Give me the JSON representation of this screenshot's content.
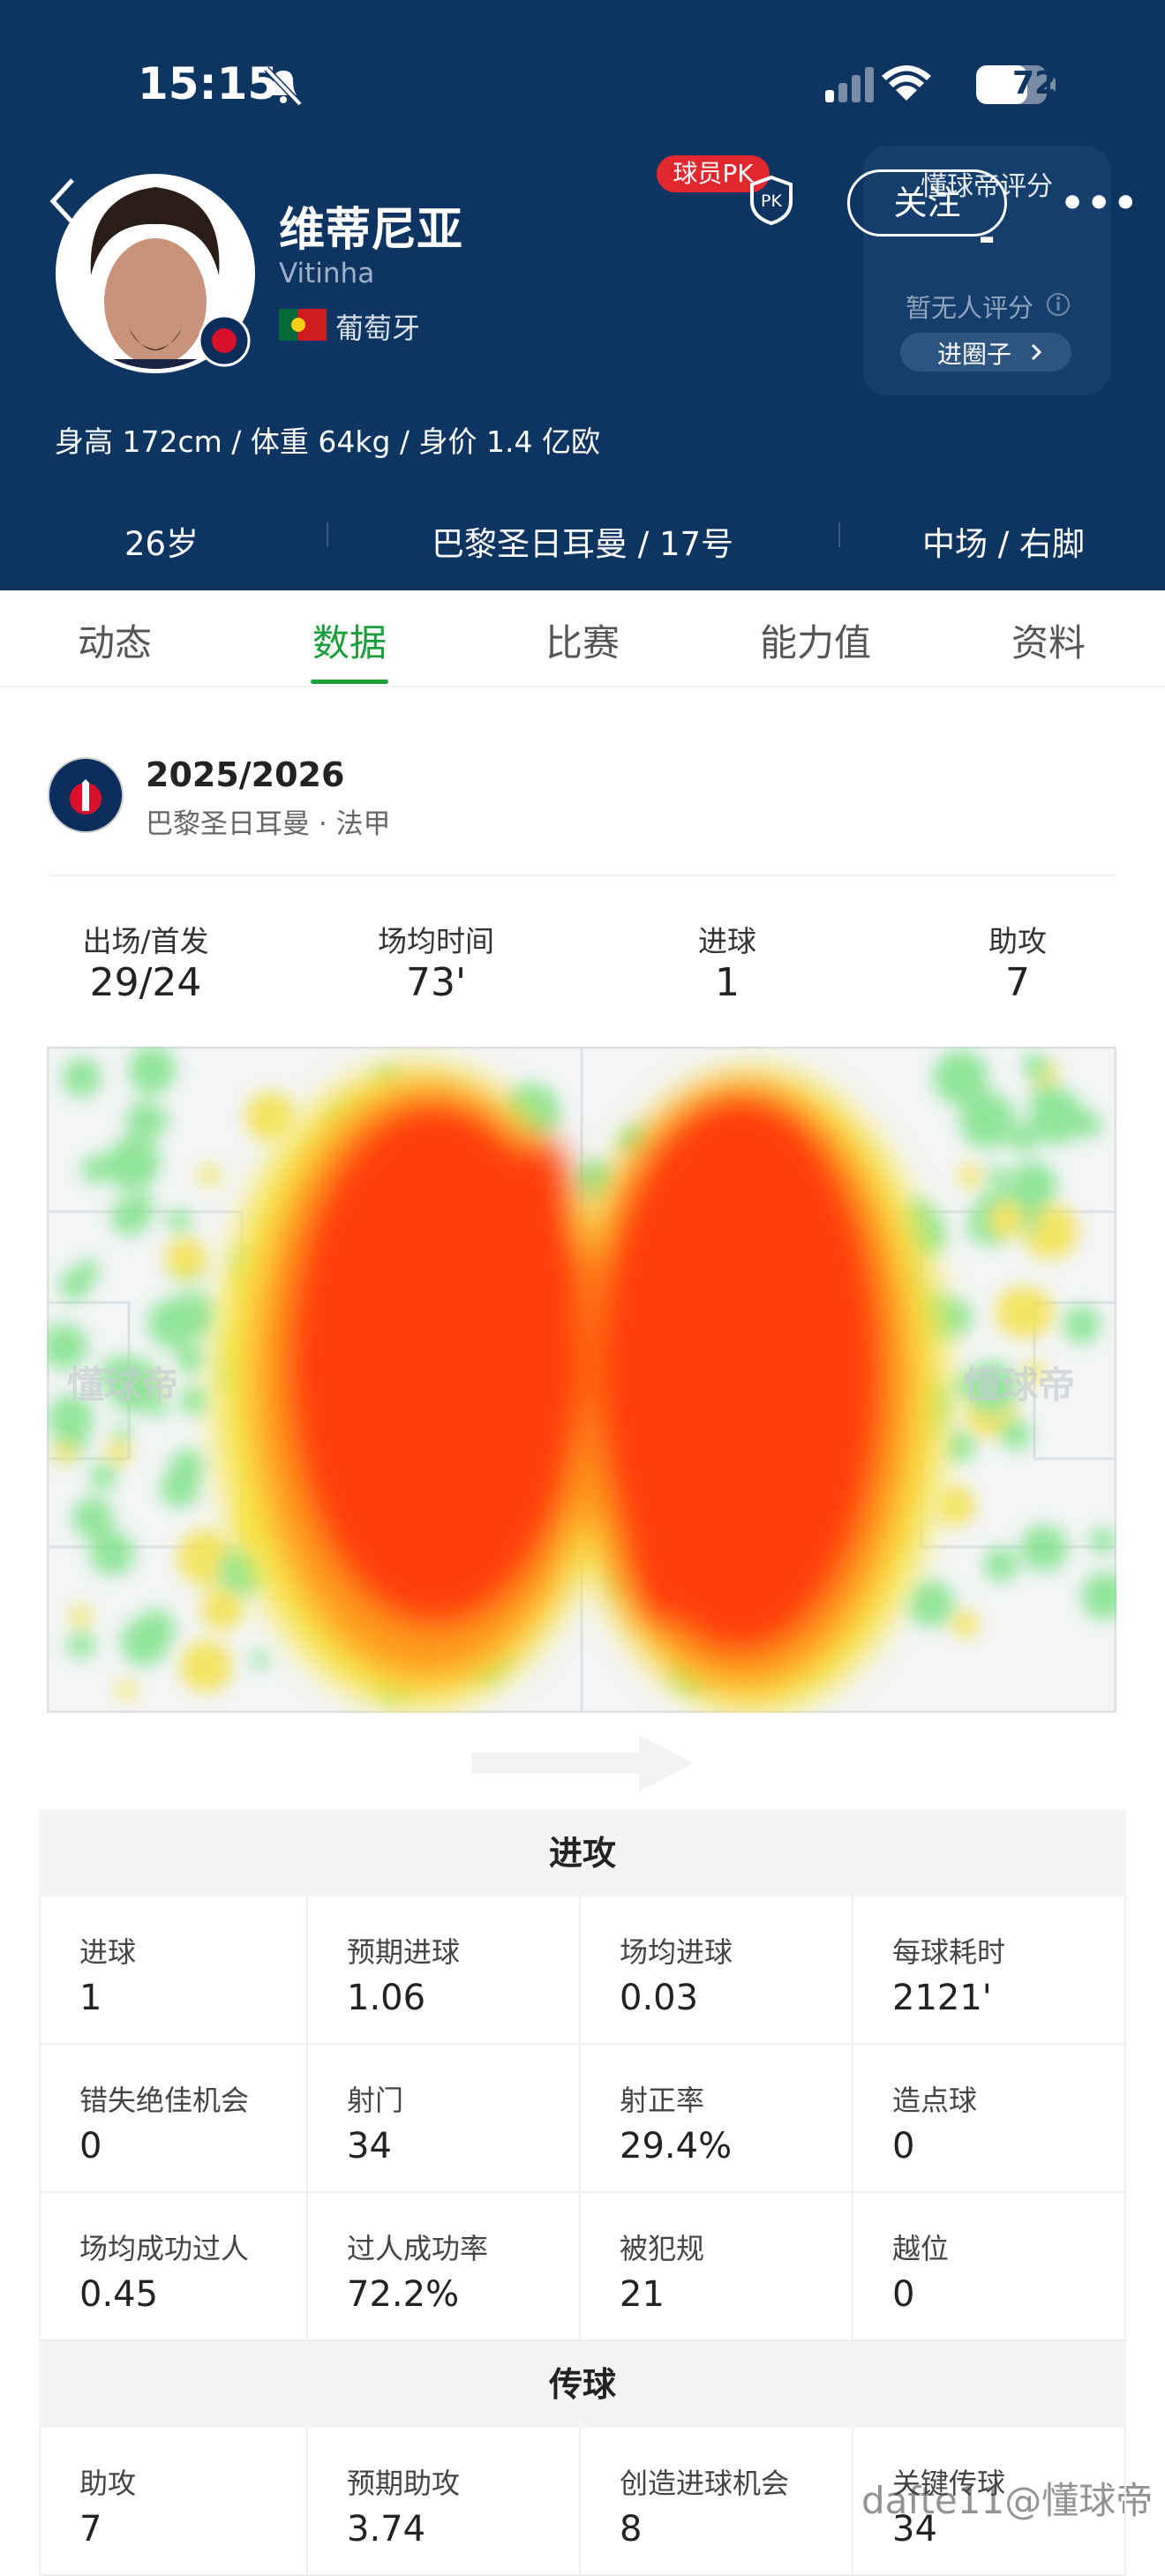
{
  "status": {
    "time": "15:15",
    "battery": "72"
  },
  "header": {
    "name": "维蒂尼亚",
    "latin_name": "Vitinha",
    "country": "葡萄牙",
    "pk_badge": "球员PK",
    "follow": "关注",
    "rating_title": "懂球帝评分",
    "rating_value": "-",
    "rating_note": "暂无人评分",
    "circle_button": "进圈子"
  },
  "info": "身高 172cm / 体重 64kg / 身价 1.4 亿欧",
  "stats": [
    "26岁",
    "巴黎圣日耳曼 / 17号",
    "中场 / 右脚"
  ],
  "tabs": [
    "动态",
    "数据",
    "比赛",
    "能力值",
    "资料"
  ],
  "season": {
    "title": "2025/2026",
    "subtitle": "巴黎圣日耳曼 · 法甲"
  },
  "summary": [
    {
      "label": "出场/首发",
      "value": "29/24"
    },
    {
      "label": "场均时间",
      "value": "73'"
    },
    {
      "label": "进球",
      "value": "1"
    },
    {
      "label": "助攻",
      "value": "7"
    }
  ],
  "heatmap": {
    "watermark": "懂球帝"
  },
  "sections": [
    {
      "title": "进攻",
      "cells": [
        {
          "label": "进球",
          "value": "1"
        },
        {
          "label": "预期进球",
          "value": "1.06"
        },
        {
          "label": "场均进球",
          "value": "0.03"
        },
        {
          "label": "每球耗时",
          "value": "2121'"
        },
        {
          "label": "错失绝佳机会",
          "value": "0"
        },
        {
          "label": "射门",
          "value": "34"
        },
        {
          "label": "射正率",
          "value": "29.4%"
        },
        {
          "label": "造点球",
          "value": "0"
        },
        {
          "label": "场均成功过人",
          "value": "0.45"
        },
        {
          "label": "过人成功率",
          "value": "72.2%"
        },
        {
          "label": "被犯规",
          "value": "21"
        },
        {
          "label": "越位",
          "value": "0"
        }
      ]
    },
    {
      "title": "传球",
      "cells": [
        {
          "label": "助攻",
          "value": "7"
        },
        {
          "label": "预期助攻",
          "value": "3.74"
        },
        {
          "label": "创造进球机会",
          "value": "8"
        },
        {
          "label": "关键传球",
          "value": "34"
        }
      ]
    }
  ],
  "watermark": "dafte11@懂球帝"
}
